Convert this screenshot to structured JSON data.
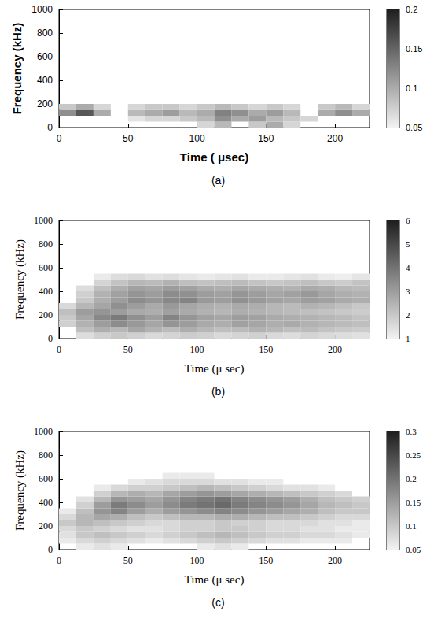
{
  "chart_data": [
    {
      "type": "heatmap",
      "label": "(a)",
      "x_label": "Time ( μsec)",
      "y_label": "Frequency (kHz)",
      "xlim": [
        0,
        225
      ],
      "xticks": [
        0,
        50,
        100,
        150,
        200
      ],
      "ylim": [
        0,
        1000
      ],
      "yticks": [
        0,
        200,
        400,
        600,
        800,
        1000
      ],
      "time_step": 12.5,
      "frequency_step": 50,
      "cell_times": [
        0,
        12.5,
        25,
        37.5,
        50,
        62.5,
        75,
        87.5,
        100,
        112.5,
        125,
        137.5,
        150,
        162.5,
        175,
        187.5,
        200,
        212.5
      ],
      "cell_frequencies": [
        0,
        50,
        100,
        150
      ],
      "cell_values": [
        [
          null,
          null,
          null,
          null,
          null,
          null,
          null,
          null,
          0.07,
          0.09,
          null,
          0.08,
          0.1,
          0.07,
          null,
          null,
          null,
          null
        ],
        [
          null,
          null,
          null,
          null,
          0.06,
          0.07,
          0.07,
          0.08,
          0.09,
          0.12,
          0.1,
          0.11,
          0.09,
          0.08,
          0.07,
          null,
          null,
          null
        ],
        [
          0.12,
          0.16,
          0.1,
          null,
          0.09,
          0.1,
          0.11,
          0.09,
          0.1,
          0.13,
          0.12,
          0.1,
          0.11,
          0.09,
          null,
          0.1,
          0.12,
          0.1
        ],
        [
          0.08,
          0.1,
          0.07,
          null,
          0.07,
          0.08,
          0.08,
          0.07,
          0.08,
          0.09,
          0.08,
          0.07,
          0.08,
          0.07,
          null,
          0.08,
          0.09,
          0.07
        ]
      ],
      "colorbar_range": [
        0.05,
        0.2
      ],
      "colorbar_ticks": [
        0.05,
        0.1,
        0.15,
        0.2
      ]
    },
    {
      "type": "heatmap",
      "label": "(b)",
      "x_label": "Time (μ sec)",
      "y_label": "Frequency (kHz)",
      "xlim": [
        0,
        225
      ],
      "xticks": [
        0,
        50,
        100,
        150,
        200
      ],
      "ylim": [
        0,
        1000
      ],
      "yticks": [
        0,
        200,
        400,
        600,
        800,
        1000
      ],
      "time_step": 12.5,
      "frequency_step": 50,
      "cell_times": [
        0,
        12.5,
        25,
        37.5,
        50,
        62.5,
        75,
        87.5,
        100,
        112.5,
        125,
        137.5,
        150,
        162.5,
        175,
        187.5,
        200,
        212.5
      ],
      "cell_frequencies": [
        0,
        50,
        100,
        150,
        200,
        250,
        300,
        350,
        400,
        450,
        500
      ],
      "cell_values": [
        [
          null,
          1.5,
          1.8,
          2.0,
          1.8,
          1.6,
          1.7,
          1.9,
          1.8,
          1.6,
          1.7,
          1.8,
          1.6,
          1.5,
          1.7,
          1.6,
          1.5,
          1.4
        ],
        [
          null,
          2.2,
          2.6,
          2.4,
          2.8,
          2.5,
          2.3,
          2.6,
          2.4,
          2.2,
          2.3,
          2.5,
          2.4,
          2.2,
          2.3,
          2.1,
          2.0,
          1.9
        ],
        [
          1.8,
          2.5,
          3.0,
          3.4,
          3.1,
          2.8,
          3.2,
          3.0,
          2.7,
          2.6,
          2.9,
          2.8,
          2.6,
          2.7,
          2.5,
          2.4,
          2.3,
          2.2
        ],
        [
          2.0,
          2.8,
          3.5,
          3.8,
          3.3,
          3.0,
          3.6,
          3.2,
          2.9,
          2.8,
          3.0,
          2.9,
          2.7,
          2.6,
          2.5,
          2.4,
          2.3,
          2.1
        ],
        [
          2.2,
          3.0,
          3.2,
          3.0,
          2.7,
          2.6,
          2.9,
          2.7,
          2.5,
          2.4,
          2.6,
          2.5,
          2.4,
          2.3,
          2.2,
          2.1,
          2.0,
          1.9
        ],
        [
          1.6,
          2.4,
          2.8,
          3.3,
          3.0,
          2.7,
          3.1,
          2.8,
          2.6,
          2.5,
          2.7,
          2.6,
          2.4,
          2.3,
          2.5,
          2.4,
          2.2,
          2.0
        ],
        [
          null,
          2.0,
          2.6,
          3.0,
          3.4,
          3.2,
          3.5,
          3.6,
          3.1,
          3.0,
          3.3,
          3.1,
          2.9,
          2.8,
          3.0,
          2.9,
          2.7,
          2.6
        ],
        [
          null,
          1.8,
          2.5,
          2.9,
          3.2,
          3.0,
          3.4,
          3.3,
          3.0,
          2.9,
          3.2,
          3.0,
          2.8,
          2.9,
          3.1,
          2.8,
          2.6,
          2.5
        ],
        [
          null,
          1.5,
          2.2,
          2.6,
          2.9,
          2.8,
          3.0,
          2.9,
          2.7,
          2.6,
          2.8,
          2.7,
          2.6,
          2.5,
          2.7,
          2.6,
          2.4,
          2.3
        ],
        [
          null,
          null,
          1.7,
          2.1,
          2.4,
          2.3,
          2.5,
          2.2,
          2.1,
          2.2,
          2.3,
          2.1,
          2.0,
          2.1,
          2.2,
          2.0,
          1.9,
          2.1
        ],
        [
          null,
          null,
          1.2,
          1.5,
          1.6,
          1.4,
          1.5,
          1.3,
          1.2,
          1.3,
          1.4,
          1.2,
          1.2,
          1.3,
          1.4,
          1.2,
          1.1,
          1.3
        ]
      ],
      "colorbar_range": [
        1,
        6
      ],
      "colorbar_ticks": [
        1,
        2,
        3,
        4,
        5,
        6
      ]
    },
    {
      "type": "heatmap",
      "label": "(c)",
      "x_label": "Time (μ sec)",
      "y_label": "Frequency (kHz)",
      "xlim": [
        0,
        225
      ],
      "xticks": [
        0,
        50,
        100,
        150,
        200
      ],
      "ylim": [
        0,
        1000
      ],
      "yticks": [
        0,
        200,
        400,
        600,
        800,
        1000
      ],
      "time_step": 12.5,
      "frequency_step": 50,
      "cell_times": [
        0,
        12.5,
        25,
        37.5,
        50,
        62.5,
        75,
        87.5,
        100,
        112.5,
        125,
        137.5,
        150,
        162.5,
        175,
        187.5,
        200,
        212.5
      ],
      "cell_frequencies": [
        0,
        50,
        100,
        150,
        200,
        250,
        300,
        350,
        400,
        450,
        500,
        550,
        600
      ],
      "cell_values": [
        [
          null,
          0.06,
          0.07,
          0.06,
          null,
          null,
          null,
          null,
          0.06,
          0.07,
          0.06,
          null,
          null,
          null,
          null,
          null,
          null,
          null
        ],
        [
          0.06,
          0.08,
          0.09,
          0.08,
          0.07,
          0.06,
          0.07,
          0.08,
          0.09,
          0.1,
          0.09,
          0.08,
          0.07,
          0.07,
          0.06,
          0.06,
          0.06,
          null
        ],
        [
          0.07,
          0.1,
          0.11,
          0.1,
          0.09,
          0.08,
          0.09,
          0.1,
          0.11,
          0.12,
          0.11,
          0.1,
          0.09,
          0.09,
          0.08,
          0.08,
          0.07,
          0.06
        ],
        [
          0.08,
          0.1,
          0.09,
          0.08,
          0.07,
          0.07,
          0.08,
          0.09,
          0.09,
          0.1,
          0.1,
          0.09,
          0.08,
          0.08,
          0.07,
          0.07,
          0.06,
          0.06
        ],
        [
          0.1,
          0.12,
          0.11,
          0.1,
          0.09,
          0.08,
          0.08,
          0.09,
          0.09,
          0.1,
          0.09,
          0.09,
          0.08,
          0.08,
          0.08,
          0.07,
          0.07,
          0.06
        ],
        [
          0.08,
          0.12,
          0.14,
          0.13,
          0.11,
          0.1,
          0.11,
          0.12,
          0.12,
          0.13,
          0.13,
          0.12,
          0.11,
          0.11,
          0.1,
          0.09,
          0.08,
          0.08
        ],
        [
          0.06,
          0.11,
          0.16,
          0.18,
          0.15,
          0.13,
          0.15,
          0.16,
          0.17,
          0.18,
          0.17,
          0.16,
          0.15,
          0.14,
          0.13,
          0.11,
          0.1,
          0.1
        ],
        [
          null,
          0.09,
          0.15,
          0.19,
          0.17,
          0.15,
          0.17,
          0.19,
          0.2,
          0.21,
          0.19,
          0.18,
          0.17,
          0.16,
          0.14,
          0.12,
          0.11,
          0.1
        ],
        [
          null,
          0.07,
          0.12,
          0.16,
          0.15,
          0.14,
          0.16,
          0.18,
          0.19,
          0.2,
          0.18,
          0.17,
          0.16,
          0.15,
          0.13,
          0.11,
          0.1,
          0.09
        ],
        [
          null,
          null,
          0.09,
          0.12,
          0.13,
          0.12,
          0.14,
          0.15,
          0.16,
          0.15,
          0.14,
          0.13,
          0.12,
          0.11,
          0.1,
          0.09,
          0.08,
          null
        ],
        [
          null,
          null,
          0.06,
          0.08,
          0.09,
          0.09,
          0.1,
          0.11,
          0.12,
          0.11,
          0.1,
          0.09,
          0.08,
          0.07,
          0.07,
          0.06,
          null,
          null
        ],
        [
          null,
          null,
          null,
          null,
          0.06,
          0.07,
          0.08,
          0.08,
          0.08,
          0.07,
          0.07,
          0.06,
          0.06,
          null,
          null,
          null,
          null,
          null
        ],
        [
          null,
          null,
          null,
          null,
          null,
          null,
          0.06,
          0.06,
          0.06,
          null,
          null,
          null,
          null,
          null,
          null,
          null,
          null,
          null
        ]
      ],
      "colorbar_range": [
        0.05,
        0.3
      ],
      "colorbar_ticks": [
        0.05,
        0.1,
        0.15,
        0.2,
        0.25,
        0.3
      ]
    }
  ]
}
